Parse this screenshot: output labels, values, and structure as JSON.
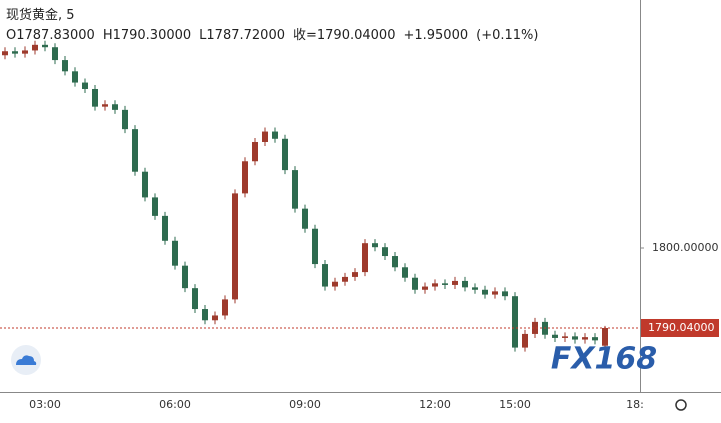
{
  "header": {
    "title": "现货黄金, 5",
    "open": "O1787.83000",
    "high": "H1790.30000",
    "low": "L1787.72000",
    "close": "收=1790.04000",
    "change": "+1.95000",
    "change_pct": "(+0.11%)"
  },
  "watermark": "FX168",
  "chart_data": {
    "type": "candlestick",
    "categories": [
      null,
      null,
      null,
      null,
      "03:00",
      null,
      null,
      null,
      null,
      null,
      null,
      null,
      null,
      null,
      null,
      null,
      null,
      "06:00",
      null,
      null,
      null,
      null,
      null,
      null,
      null,
      null,
      null,
      null,
      null,
      null,
      "09:00",
      null,
      null,
      null,
      null,
      null,
      null,
      null,
      null,
      null,
      null,
      null,
      null,
      "12:00",
      null,
      null,
      null,
      null,
      null,
      null,
      null,
      "15:00",
      null,
      null,
      null,
      null,
      null,
      null,
      null,
      null,
      null,
      null,
      null,
      "18:"
    ],
    "open": [
      1824.0,
      1824.5,
      1824.2,
      1824.6,
      1825.3,
      1825.0,
      1823.4,
      1822.0,
      1820.6,
      1819.8,
      1817.6,
      1817.9,
      1817.2,
      1814.8,
      1809.5,
      1806.3,
      1804.0,
      1800.9,
      1797.8,
      1795.0,
      1792.4,
      1791.0,
      1791.6,
      1793.6,
      1806.8,
      1810.8,
      1813.2,
      1814.5,
      1813.6,
      1809.7,
      1804.9,
      1802.4,
      1798.0,
      1795.2,
      1795.8,
      1796.4,
      1797.0,
      1800.6,
      1800.1,
      1799.0,
      1797.6,
      1796.3,
      1794.8,
      1795.2,
      1795.6,
      1795.4,
      1795.9,
      1795.1,
      1794.8,
      1794.2,
      1794.6,
      1794.0,
      1787.6,
      1789.3,
      1790.8,
      1789.2,
      1788.8,
      1789.0,
      1788.6,
      1788.9,
      1787.83,
      null,
      null,
      null
    ],
    "high": [
      1825.0,
      1825.0,
      1825.1,
      1825.8,
      1825.8,
      1825.5,
      1823.9,
      1822.5,
      1821.1,
      1820.3,
      1818.4,
      1818.4,
      1817.7,
      1815.3,
      1810.0,
      1806.8,
      1804.5,
      1801.4,
      1798.3,
      1795.5,
      1792.9,
      1792.1,
      1794.1,
      1807.3,
      1811.3,
      1813.7,
      1815.0,
      1815.0,
      1814.1,
      1810.2,
      1805.4,
      1802.9,
      1798.5,
      1796.3,
      1796.9,
      1797.5,
      1801.1,
      1801.1,
      1800.6,
      1799.5,
      1798.1,
      1796.8,
      1795.7,
      1796.1,
      1796.1,
      1796.4,
      1796.4,
      1795.6,
      1795.3,
      1795.1,
      1795.1,
      1794.5,
      1789.8,
      1791.3,
      1791.3,
      1789.7,
      1789.5,
      1789.5,
      1789.4,
      1789.4,
      1790.3,
      null,
      null,
      null
    ],
    "low": [
      1823.5,
      1823.7,
      1823.7,
      1824.1,
      1824.5,
      1822.9,
      1821.5,
      1820.1,
      1819.3,
      1817.1,
      1817.1,
      1816.7,
      1814.3,
      1809.0,
      1805.8,
      1803.5,
      1800.4,
      1797.3,
      1794.5,
      1791.9,
      1790.5,
      1790.5,
      1791.1,
      1793.1,
      1806.3,
      1810.3,
      1812.7,
      1813.1,
      1809.2,
      1804.4,
      1801.9,
      1797.5,
      1794.7,
      1794.7,
      1795.3,
      1795.9,
      1796.5,
      1799.6,
      1798.5,
      1797.1,
      1795.8,
      1794.3,
      1794.3,
      1794.7,
      1794.9,
      1794.9,
      1794.6,
      1794.3,
      1793.7,
      1793.7,
      1793.5,
      1787.1,
      1787.1,
      1788.8,
      1788.7,
      1788.3,
      1788.3,
      1788.1,
      1788.1,
      1788.0,
      1787.72,
      null,
      null,
      null
    ],
    "close": [
      1824.5,
      1824.2,
      1824.6,
      1825.3,
      1825.0,
      1823.4,
      1822.0,
      1820.6,
      1819.8,
      1817.6,
      1817.9,
      1817.2,
      1814.8,
      1809.5,
      1806.3,
      1804.0,
      1800.9,
      1797.8,
      1795.0,
      1792.4,
      1791.0,
      1791.6,
      1793.6,
      1806.8,
      1810.8,
      1813.2,
      1814.5,
      1813.6,
      1809.7,
      1804.9,
      1802.4,
      1798.0,
      1795.2,
      1795.8,
      1796.4,
      1797.0,
      1800.6,
      1800.1,
      1799.0,
      1797.6,
      1796.3,
      1794.8,
      1795.2,
      1795.6,
      1795.4,
      1795.9,
      1795.1,
      1794.8,
      1794.2,
      1794.6,
      1794.0,
      1787.6,
      1789.3,
      1790.8,
      1789.2,
      1788.8,
      1789.0,
      1788.6,
      1788.9,
      1788.5,
      1790.04,
      null,
      null,
      null
    ],
    "up_color": "#9e3a2c",
    "down_color": "#2e6b4f",
    "ylim": [
      1782.07,
      1830.88
    ],
    "yticks": [
      {
        "value": 1800,
        "label": "1800.00000"
      }
    ],
    "price_line": {
      "value": 1790.04,
      "label": "1790.04000",
      "color": "#c0392b"
    },
    "grid": false
  }
}
